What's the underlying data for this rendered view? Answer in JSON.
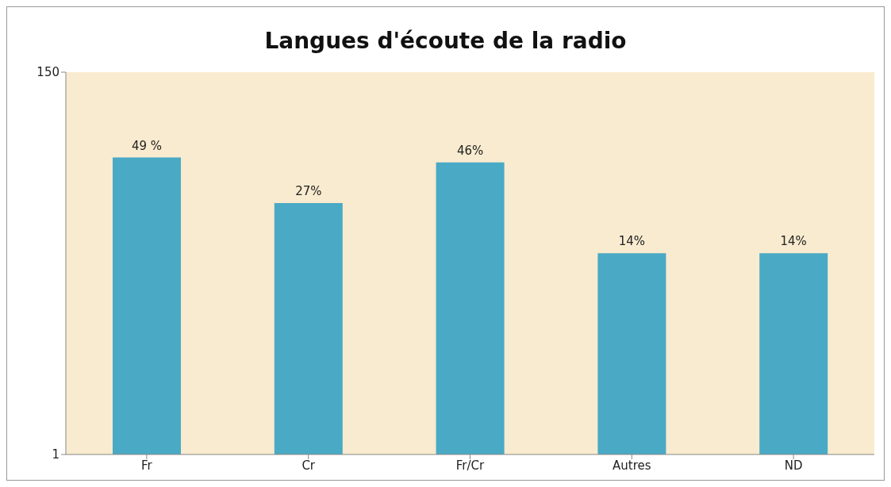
{
  "chart_data": {
    "type": "bar",
    "title": "Langues d'écoute de la radio",
    "categories": [
      "Fr",
      "Cr",
      "Fr/Cr",
      "Autres",
      "ND"
    ],
    "values": [
      49,
      27,
      46,
      14,
      14
    ],
    "value_labels": [
      "49 %",
      "27%",
      "46%",
      "14%",
      "14%"
    ],
    "color": "#4aa9c5",
    "log": "y",
    "ylim": [
      1,
      150
    ],
    "yticks": [
      1,
      150
    ],
    "grid": false
  }
}
